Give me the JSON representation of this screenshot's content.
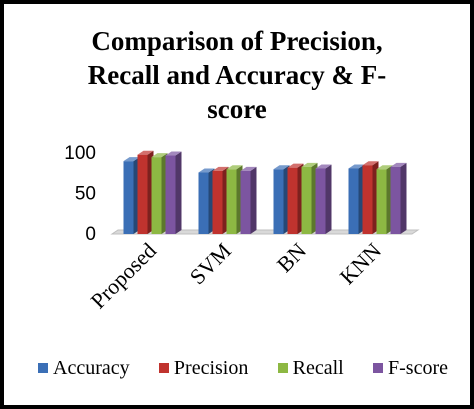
{
  "chart_data": {
    "type": "bar",
    "style": "3d-clustered-column",
    "title_lines": [
      "Comparison of Precision,",
      "Recall and Accuracy & F-",
      "score"
    ],
    "xlabel": "",
    "ylabel": "",
    "categories": [
      "Proposed",
      "SVM",
      "BN",
      "KNN"
    ],
    "series": [
      {
        "name": "Accuracy",
        "values": [
          90,
          76,
          80,
          81
        ],
        "color": "#3b6fb6"
      },
      {
        "name": "Precision",
        "values": [
          98,
          78,
          82,
          85
        ],
        "color": "#c0332e"
      },
      {
        "name": "Recall",
        "values": [
          95,
          80,
          83,
          80
        ],
        "color": "#8db843"
      },
      {
        "name": "F-score",
        "values": [
          97,
          78,
          81,
          83
        ],
        "color": "#7c55a0"
      }
    ],
    "yticks": [
      "0",
      "50",
      "100"
    ],
    "ylim": [
      0,
      110
    ],
    "grid": false,
    "legend_position": "bottom"
  }
}
